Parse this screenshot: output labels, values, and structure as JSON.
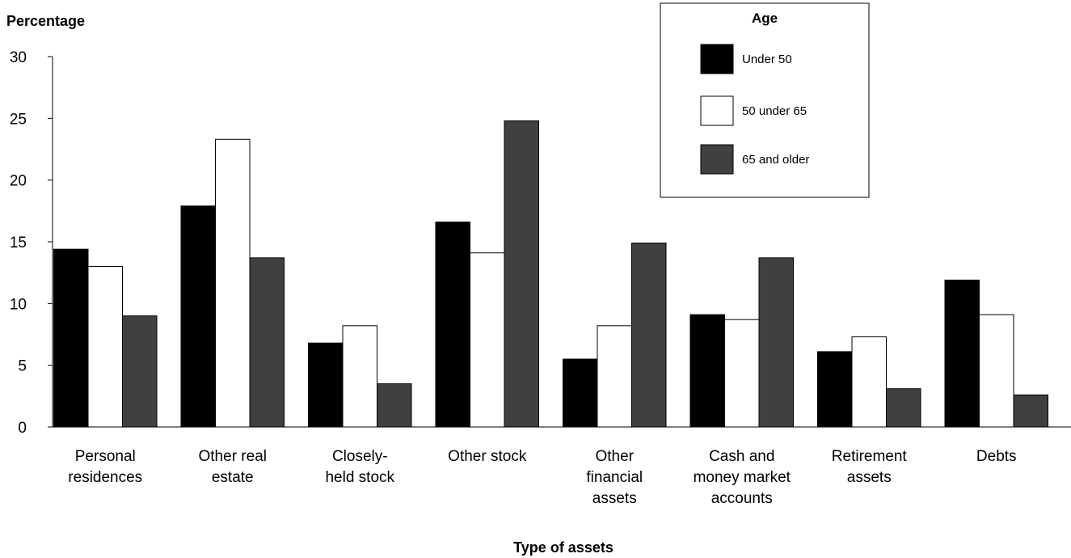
{
  "chart_data": {
    "type": "bar",
    "ylabel": "Percentage",
    "xlabel": "Type of assets",
    "ylim": [
      0,
      30
    ],
    "yticks": [
      0,
      5,
      10,
      15,
      20,
      25,
      30
    ],
    "grid": false,
    "legend": {
      "title": "Age",
      "placement": "top-right"
    },
    "categories": [
      [
        "Personal",
        "residences"
      ],
      [
        "Other real",
        "estate"
      ],
      [
        "Closely-",
        "held stock"
      ],
      [
        "Other stock"
      ],
      [
        "Other",
        "financial",
        "assets"
      ],
      [
        "Cash and",
        "money market",
        "accounts"
      ],
      [
        "Retirement",
        "assets"
      ],
      [
        "Debts"
      ]
    ],
    "series": [
      {
        "name": "Under 50",
        "color": "#000000",
        "values": [
          14.4,
          17.9,
          6.8,
          16.6,
          5.5,
          9.1,
          6.1,
          11.9
        ]
      },
      {
        "name": "50 under 65",
        "color": "#ffffff",
        "values": [
          13.0,
          23.3,
          8.2,
          14.1,
          8.2,
          8.7,
          7.3,
          9.1
        ]
      },
      {
        "name": "65 and older",
        "color": "#404040",
        "values": [
          9.0,
          13.7,
          3.5,
          24.8,
          14.9,
          13.7,
          3.1,
          2.6
        ]
      }
    ]
  }
}
